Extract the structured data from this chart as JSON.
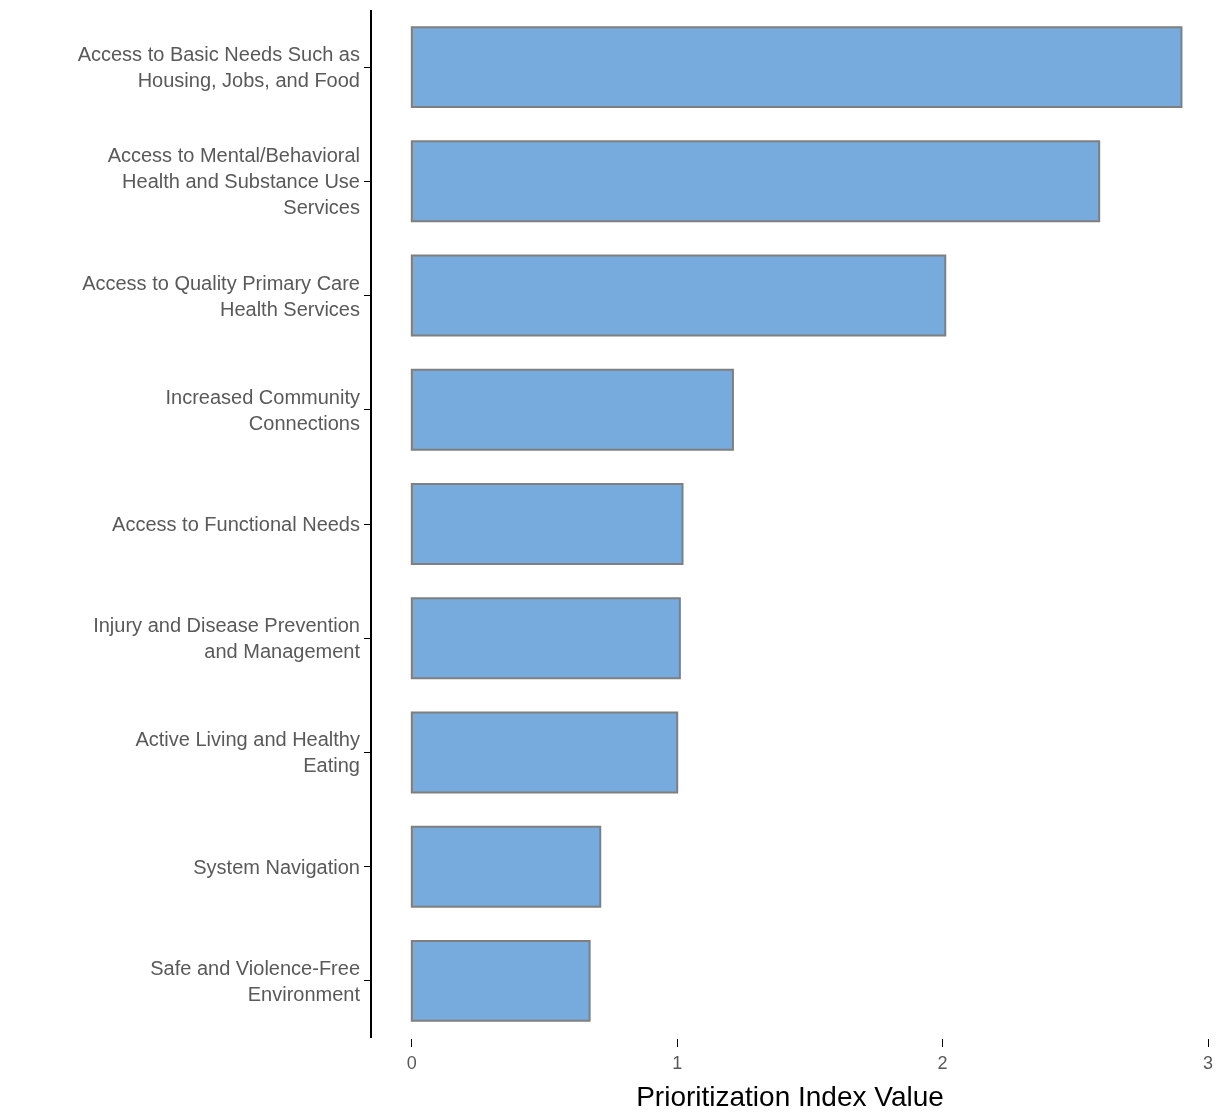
{
  "chart_data": {
    "type": "bar",
    "orientation": "horizontal",
    "xlabel": "Prioritization Index Value",
    "categories": [
      "Access to Basic Needs Such as Housing, Jobs, and Food",
      "Access to Mental/Behavioral Health and Substance Use Services",
      "Access to Quality Primary Care Health Services",
      "Increased Community Connections",
      "Access to Functional Needs",
      "Injury and Disease Prevention and Management",
      "Active Living and Healthy Eating",
      "System Navigation",
      "Safe and Violence-Free Environment"
    ],
    "values": [
      2.9,
      2.59,
      2.01,
      1.21,
      1.02,
      1.01,
      1.0,
      0.71,
      0.67
    ],
    "color": "#77aadd",
    "xlim": [
      -0.15,
      3.0
    ],
    "xticks": [
      0,
      1,
      2,
      3
    ]
  }
}
